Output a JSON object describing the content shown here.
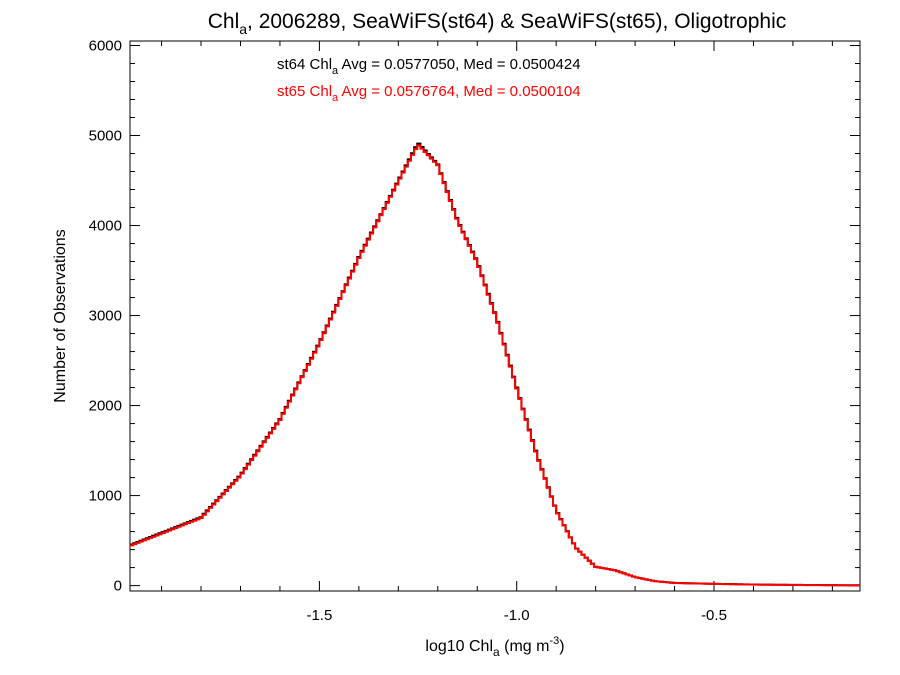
{
  "chart_data": {
    "type": "step",
    "title": {
      "main": "Chl",
      "sub": "a",
      "rest": ", 2006289, SeaWiFS(st64) & SeaWiFS(st65), Oligotrophic"
    },
    "xlabel": {
      "main": "log10 Chl",
      "sub": "a",
      "rest": " (mg m",
      "sup": "-3",
      "close": ")"
    },
    "ylabel": "Number of Observations",
    "xlim": [
      -1.98,
      -0.13
    ],
    "ylim": [
      -60,
      6050
    ],
    "x_ticks": [
      -1.5,
      -1.0,
      -0.5
    ],
    "x_tick_labels": [
      "-1.5",
      "-1.0",
      "-0.5"
    ],
    "y_ticks": [
      0,
      1000,
      2000,
      3000,
      4000,
      5000,
      6000
    ],
    "y_tick_labels": [
      "0",
      "1000",
      "2000",
      "3000",
      "4000",
      "5000",
      "6000"
    ],
    "annotations": [
      {
        "prefix": "st64 Chl",
        "sub": "a",
        "suffix": " Avg = 0.0577050, Med = 0.0500424",
        "color": "#000000"
      },
      {
        "prefix": "st65 Chl",
        "sub": "a",
        "suffix": " Avg = 0.0576764, Med = 0.0500104",
        "color": "#ff0000"
      }
    ],
    "series": [
      {
        "name": "st64",
        "color": "#000000",
        "x": [
          -1.98,
          -1.8,
          -1.7,
          -1.6,
          -1.5,
          -1.4,
          -1.3,
          -1.25,
          -1.2,
          -1.15,
          -1.1,
          -1.05,
          -1.0,
          -0.95,
          -0.9,
          -0.85,
          -0.8,
          -0.75,
          -0.7,
          -0.65,
          -0.6,
          -0.5,
          -0.4,
          -0.3,
          -0.2,
          -0.13
        ],
        "y": [
          450,
          760,
          1230,
          1850,
          2700,
          3650,
          4500,
          4920,
          4680,
          4060,
          3600,
          2960,
          2200,
          1470,
          840,
          420,
          210,
          170,
          95,
          50,
          30,
          20,
          12,
          8,
          5,
          3
        ]
      },
      {
        "name": "st65",
        "color": "#ff0000",
        "x": [
          -1.98,
          -1.8,
          -1.7,
          -1.6,
          -1.5,
          -1.4,
          -1.3,
          -1.25,
          -1.2,
          -1.15,
          -1.1,
          -1.05,
          -1.0,
          -0.95,
          -0.9,
          -0.85,
          -0.8,
          -0.75,
          -0.7,
          -0.65,
          -0.6,
          -0.5,
          -0.4,
          -0.3,
          -0.2,
          -0.13
        ],
        "y": [
          440,
          750,
          1220,
          1840,
          2690,
          3640,
          4490,
          4900,
          4670,
          4050,
          3590,
          2950,
          2190,
          1460,
          835,
          418,
          208,
          168,
          94,
          49,
          29,
          19,
          11,
          7,
          4,
          2
        ]
      }
    ]
  }
}
